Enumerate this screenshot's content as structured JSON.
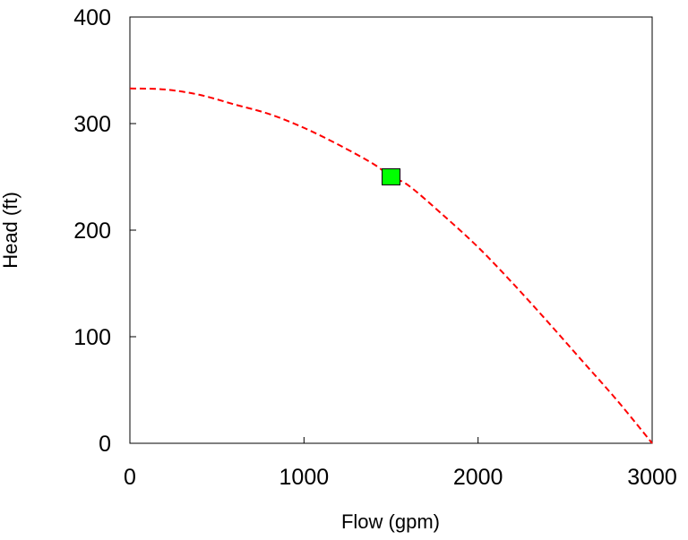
{
  "chart_data": {
    "type": "line",
    "title": "",
    "xlabel": "Flow (gpm)",
    "ylabel": "Head (ft)",
    "xlim": [
      0,
      3000
    ],
    "ylim": [
      0,
      400
    ],
    "xticks": [
      0,
      1000,
      2000,
      3000
    ],
    "yticks": [
      0,
      100,
      200,
      300,
      400
    ],
    "xtick_labels": [
      "0",
      "1000",
      "2000",
      "3000"
    ],
    "ytick_labels": [
      "0",
      "100",
      "200",
      "300",
      "400"
    ],
    "grid": false,
    "legend": "none",
    "series": [
      {
        "style": "dashed",
        "color": "#ff0000",
        "x": [
          0,
          200,
          400,
          600,
          800,
          1000,
          1200,
          1400,
          1500,
          1600,
          1800,
          2000,
          2200,
          2400,
          2600,
          2800,
          3000
        ],
        "y": [
          333,
          332,
          327,
          318,
          309,
          296,
          280,
          262,
          250,
          242,
          214,
          184,
          150,
          114,
          77,
          40,
          0
        ]
      }
    ],
    "markers": [
      {
        "shape": "square",
        "color": "#00ff00",
        "x": 1500,
        "y": 250
      }
    ]
  }
}
